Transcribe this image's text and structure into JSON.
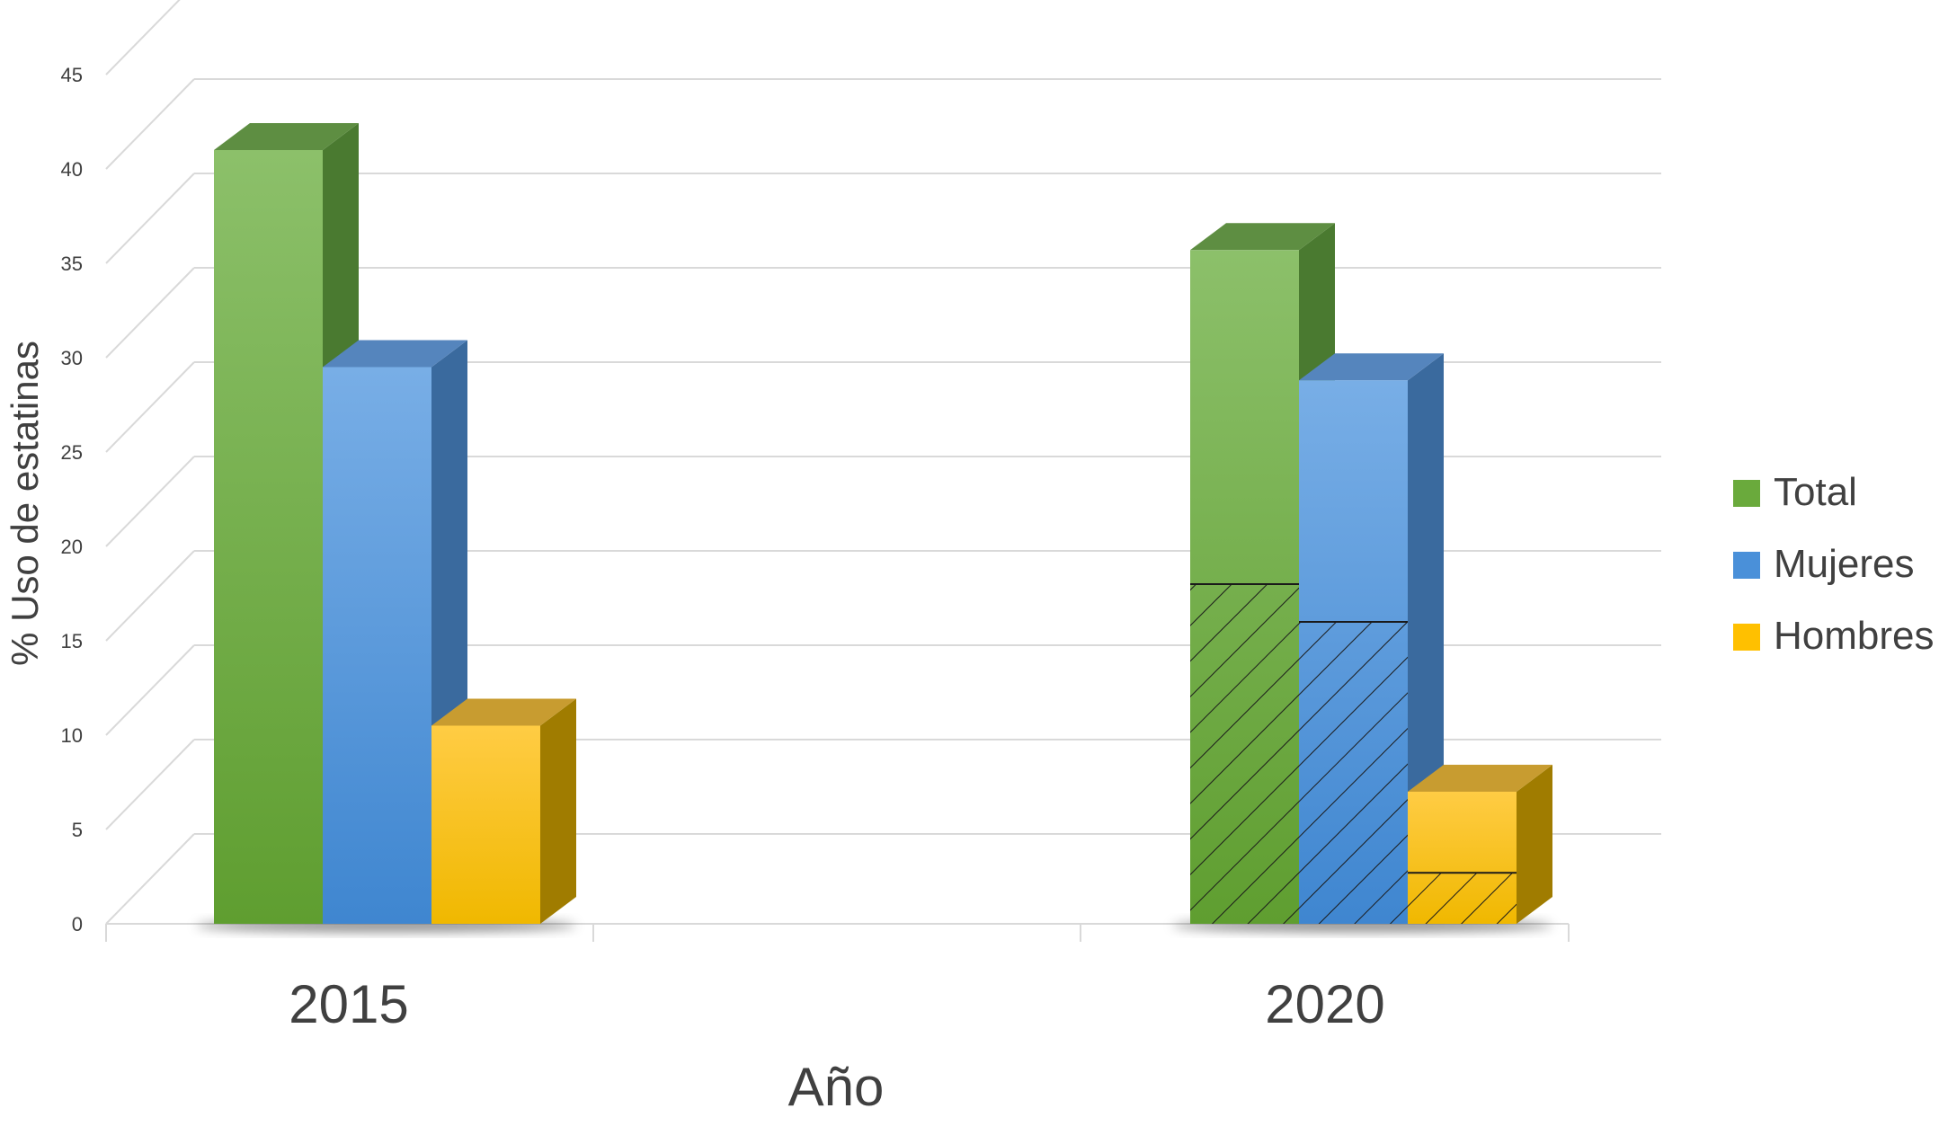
{
  "chart_data": {
    "type": "bar",
    "style": "3d-clustered-column",
    "categories": [
      "2015",
      "2020"
    ],
    "series": [
      {
        "name": "Total",
        "color": "#6aaa3c",
        "values": [
          41,
          35.7
        ],
        "hatched_portion": [
          0,
          18
        ]
      },
      {
        "name": "Mujeres",
        "color": "#4a90d9",
        "values": [
          29.5,
          28.8
        ],
        "hatched_portion": [
          0,
          16
        ]
      },
      {
        "name": "Hombres",
        "color": "#ffc000",
        "values": [
          10.5,
          7
        ],
        "hatched_portion": [
          0,
          2.7
        ]
      }
    ],
    "xlabel": "Año",
    "ylabel": "%  Uso de estatinas",
    "ylim": [
      0,
      45
    ],
    "yticks": [
      0,
      5,
      10,
      15,
      20,
      25,
      30,
      35,
      40,
      45
    ],
    "grid": true,
    "legend": "right"
  }
}
